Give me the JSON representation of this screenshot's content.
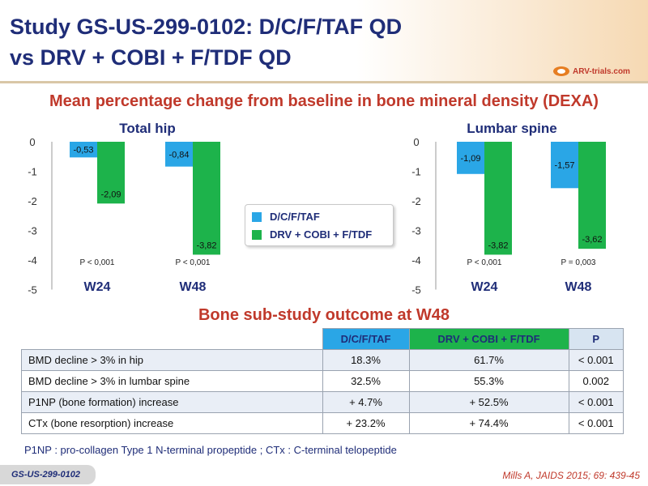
{
  "header": {
    "title_line1": "Study GS-US-299-0102: D/C/F/TAF QD",
    "title_line2": "vs DRV + COBI + F/TDF QD",
    "logo_text": "ARV-trials.com"
  },
  "subtitle": "Mean percentage change from baseline in bone mineral density (DEXA)",
  "colors": {
    "d_c_f_taf": "#2aa6e6",
    "drv_cobi_f_tdf": "#1db34b",
    "title": "#1f2d78",
    "accent": "#c0392b"
  },
  "legend": {
    "series1": "D/C/F/TAF",
    "series2": "DRV + COBI + F/TDF"
  },
  "chart_data": [
    {
      "type": "bar",
      "title": "Total hip",
      "categories": [
        "W24",
        "W48"
      ],
      "series": [
        {
          "name": "D/C/F/TAF",
          "values": [
            -0.53,
            -0.84
          ],
          "labels": [
            "-0,53",
            "-0,84"
          ]
        },
        {
          "name": "DRV + COBI + F/TDF",
          "values": [
            -2.09,
            -3.82
          ],
          "labels": [
            "-2,09",
            "-3,82"
          ]
        }
      ],
      "p_values": [
        "P < 0,001",
        "P < 0,001"
      ],
      "ylim": [
        -5,
        0
      ],
      "yticks": [
        "0",
        "-1",
        "-2",
        "-3",
        "-4",
        "-5"
      ]
    },
    {
      "type": "bar",
      "title": "Lumbar spine",
      "categories": [
        "W24",
        "W48"
      ],
      "series": [
        {
          "name": "D/C/F/TAF",
          "values": [
            -1.09,
            -1.57
          ],
          "labels": [
            "-1,09",
            "-1,57"
          ]
        },
        {
          "name": "DRV + COBI + F/TDF",
          "values": [
            -3.82,
            -3.62
          ],
          "labels": [
            "-3,82",
            "-3,62"
          ]
        }
      ],
      "p_values": [
        "P < 0,001",
        "P = 0,003"
      ],
      "ylim": [
        -5,
        0
      ],
      "yticks": [
        "0",
        "-1",
        "-2",
        "-3",
        "-4",
        "-5"
      ]
    }
  ],
  "outcome_title": "Bone sub-study outcome at W48",
  "table": {
    "headers": [
      "",
      "D/C/F/TAF",
      "DRV + COBI + F/TDF",
      "P"
    ],
    "rows": [
      [
        "BMD decline > 3% in hip",
        "18.3%",
        "61.7%",
        "< 0.001"
      ],
      [
        "BMD decline > 3% in lumbar spine",
        "32.5%",
        "55.3%",
        "0.002"
      ],
      [
        "P1NP (bone formation) increase",
        "+ 4.7%",
        "+ 52.5%",
        "< 0.001"
      ],
      [
        "CTx (bone resorption) increase",
        "+ 23.2%",
        "+ 74.4%",
        "< 0.001"
      ]
    ]
  },
  "footnote": "P1NP : pro-collagen Type 1 N-terminal propeptide ; CTx : C-terminal telopeptide",
  "footer_badge": "GS-US-299-0102",
  "reference": "Mills A, JAIDS 2015; 69: 439-45"
}
